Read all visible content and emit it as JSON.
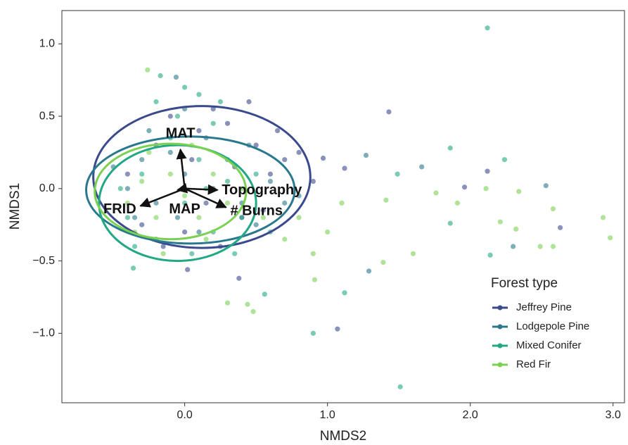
{
  "chart_data": {
    "type": "scatter",
    "x_label": "NMDS2",
    "y_label": "NMDS1",
    "xlim": [
      -0.86,
      3.08
    ],
    "ylim": [
      -1.48,
      1.23
    ],
    "xticks": [
      {
        "value": 0,
        "label": "0.0"
      },
      {
        "value": 1,
        "label": "1.0"
      },
      {
        "value": 2,
        "label": "2.0"
      },
      {
        "value": 3,
        "label": "3.0"
      }
    ],
    "yticks": [
      {
        "value": 1,
        "label": "1.0"
      },
      {
        "value": 0.5,
        "label": "0.5"
      },
      {
        "value": 0,
        "label": "0.0"
      },
      {
        "value": -0.5,
        "label": "−0.5"
      },
      {
        "value": -1,
        "label": "−1.0"
      }
    ],
    "grid": false,
    "legend": "bottom-right",
    "legend_title": "Forest type",
    "series": [
      {
        "name": "Jeffrey Pine",
        "color": "#3b4a8c",
        "x": [
          0.1,
          0.3,
          0.5,
          0.6,
          0.7,
          -0.2,
          -0.1,
          0.2,
          0.4,
          0.0,
          -0.3,
          0.8,
          0.9,
          0.35,
          -0.4,
          0.15,
          0.55,
          -0.15,
          0.05,
          0.25,
          0.65,
          0.45,
          1.43,
          1.07,
          2.63,
          2.12,
          1.96,
          0.38,
          0.02,
          1.12,
          0.97
        ],
        "y": [
          0.4,
          0.45,
          0.3,
          0.1,
          0.2,
          0.3,
          0.5,
          0.55,
          -0.2,
          -0.3,
          -0.25,
          0.25,
          0.05,
          0.15,
          0.1,
          -0.1,
          -0.15,
          -0.4,
          0.2,
          -0.4,
          0.4,
          0.6,
          0.53,
          -0.97,
          -0.27,
          0.12,
          0.01,
          -0.62,
          -0.56,
          0.14,
          0.21
        ],
        "ellipse": {
          "cx": 0.12,
          "cy": 0.08,
          "rx": 0.76,
          "ry": 0.49
        }
      },
      {
        "name": "Lodgepole Pine",
        "color": "#2a788e",
        "x": [
          -0.5,
          -0.4,
          -0.3,
          -0.2,
          0.0,
          0.2,
          0.4,
          0.6,
          0.5,
          0.1,
          -0.1,
          0.3,
          -0.35,
          0.7,
          0.15,
          -0.05,
          0.45,
          0.8,
          -0.25,
          0.0,
          2.53,
          2.3,
          1.29,
          -0.06,
          1.66,
          1.27
        ],
        "y": [
          0.15,
          0.0,
          0.2,
          -0.1,
          0.1,
          0.0,
          -0.1,
          0.05,
          -0.25,
          -0.3,
          0.25,
          0.2,
          -0.2,
          -0.1,
          0.35,
          -0.2,
          0.3,
          -0.05,
          0.4,
          0.55,
          0.02,
          -0.4,
          -0.57,
          0.77,
          0.15,
          0.23
        ],
        "ellipse": {
          "cx": 0.04,
          "cy": -0.01,
          "rx": 0.73,
          "ry": 0.37
        }
      },
      {
        "name": "Mixed Conifer",
        "color": "#22a884",
        "x": [
          -0.4,
          -0.3,
          -0.2,
          0.0,
          0.1,
          0.2,
          -0.1,
          0.3,
          0.4,
          -0.35,
          0.05,
          0.2,
          -0.2,
          0.0,
          0.5,
          0.6,
          -0.45,
          0.15,
          -0.05,
          0.35,
          0.1,
          0.25,
          2.12,
          1.51,
          0.9,
          2.24,
          1.86,
          2.14,
          0.56,
          1.12,
          -0.17,
          -0.36,
          1.49,
          1.86
        ],
        "y": [
          -0.2,
          0.1,
          -0.35,
          -0.1,
          0.2,
          -0.3,
          0.35,
          0.05,
          -0.2,
          -0.4,
          -0.45,
          0.45,
          0.6,
          0.7,
          0.1,
          -0.3,
          0.0,
          0.0,
          0.5,
          -0.45,
          0.65,
          0.6,
          1.11,
          -1.37,
          -1.0,
          0.2,
          0.28,
          -0.46,
          -0.73,
          -0.72,
          0.78,
          -0.55,
          0.1,
          -0.24
        ],
        "ellipse": {
          "cx": -0.05,
          "cy": -0.1,
          "rx": 0.55,
          "ry": 0.4
        }
      },
      {
        "name": "Red Fir",
        "color": "#7ad151",
        "x": [
          -0.4,
          -0.3,
          -0.2,
          -0.1,
          0.0,
          0.1,
          0.2,
          0.3,
          -0.25,
          0.05,
          0.4,
          -0.35,
          0.15,
          0.55,
          0.7,
          0.9,
          1.1,
          0.8,
          1.0,
          -0.15,
          2.93,
          2.98,
          2.58,
          2.49,
          2.58,
          2.32,
          2.21,
          2.11,
          2.34,
          1.6,
          1.39,
          0.3,
          0.44,
          0.48,
          0.91,
          -0.26,
          1.76,
          1.91,
          1.41
        ],
        "y": [
          -0.1,
          0.05,
          -0.2,
          0.1,
          -0.05,
          -0.2,
          0.1,
          -0.1,
          0.25,
          0.3,
          0.0,
          -0.3,
          -0.35,
          -0.2,
          -0.35,
          -0.45,
          -0.1,
          -0.2,
          -0.3,
          -0.45,
          -0.2,
          -0.34,
          -0.14,
          -0.4,
          -0.4,
          -0.28,
          -0.23,
          0.0,
          -0.02,
          -0.45,
          -0.51,
          -0.79,
          -0.8,
          -0.85,
          -0.63,
          0.82,
          -0.03,
          -0.1,
          -0.08
        ],
        "ellipse": {
          "cx": -0.1,
          "cy": -0.02,
          "rx": 0.53,
          "ry": 0.33
        }
      }
    ],
    "vectors": [
      {
        "label": "MAT",
        "x": -0.03,
        "y": 0.27
      },
      {
        "label": "Topography",
        "x": 0.23,
        "y": -0.01
      },
      {
        "label": "FRID",
        "x": -0.31,
        "y": -0.12
      },
      {
        "label": "# Burns",
        "x": 0.29,
        "y": -0.13
      },
      {
        "label": "MAP",
        "x": -0.05,
        "y": -0.01
      }
    ]
  }
}
